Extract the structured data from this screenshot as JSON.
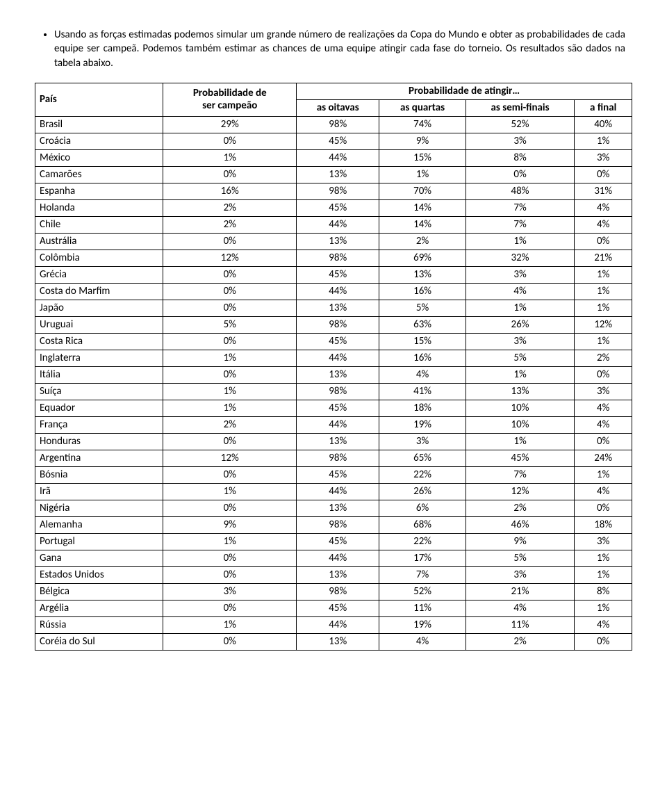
{
  "intro": {
    "bullet": "Usando as forças estimadas podemos simular um grande número de realizações da Copa do Mundo e obter as probabilidades de cada equipe ser campeã. Podemos também estimar as chances de uma equipe atingir cada fase do torneio. Os resultados são dados na tabela abaixo."
  },
  "table": {
    "headers": {
      "pais": "País",
      "prob_campeao_l1": "Probabilidade de",
      "prob_campeao_l2": "ser campeão",
      "prob_atingir": "Probabilidade de atingir…",
      "oitavas": "as oitavas",
      "quartas": "as quartas",
      "semifinais": "as semi-finais",
      "final": "a final"
    },
    "rows": [
      {
        "c": "Brasil",
        "p1": "29%",
        "p2": "98%",
        "p3": "74%",
        "p4": "52%",
        "p5": "40%"
      },
      {
        "c": "Croácia",
        "p1": "0%",
        "p2": "45%",
        "p3": "9%",
        "p4": "3%",
        "p5": "1%"
      },
      {
        "c": "México",
        "p1": "1%",
        "p2": "44%",
        "p3": "15%",
        "p4": "8%",
        "p5": "3%"
      },
      {
        "c": "Camarões",
        "p1": "0%",
        "p2": "13%",
        "p3": "1%",
        "p4": "0%",
        "p5": "0%"
      },
      {
        "c": "Espanha",
        "p1": "16%",
        "p2": "98%",
        "p3": "70%",
        "p4": "48%",
        "p5": "31%"
      },
      {
        "c": "Holanda",
        "p1": "2%",
        "p2": "45%",
        "p3": "14%",
        "p4": "7%",
        "p5": "4%"
      },
      {
        "c": "Chile",
        "p1": "2%",
        "p2": "44%",
        "p3": "14%",
        "p4": "7%",
        "p5": "4%"
      },
      {
        "c": "Austrália",
        "p1": "0%",
        "p2": "13%",
        "p3": "2%",
        "p4": "1%",
        "p5": "0%"
      },
      {
        "c": "Colômbia",
        "p1": "12%",
        "p2": "98%",
        "p3": "69%",
        "p4": "32%",
        "p5": "21%"
      },
      {
        "c": "Grécia",
        "p1": "0%",
        "p2": "45%",
        "p3": "13%",
        "p4": "3%",
        "p5": "1%"
      },
      {
        "c": "Costa do Marfim",
        "p1": "0%",
        "p2": "44%",
        "p3": "16%",
        "p4": "4%",
        "p5": "1%"
      },
      {
        "c": "Japão",
        "p1": "0%",
        "p2": "13%",
        "p3": "5%",
        "p4": "1%",
        "p5": "1%"
      },
      {
        "c": "Uruguai",
        "p1": "5%",
        "p2": "98%",
        "p3": "63%",
        "p4": "26%",
        "p5": "12%"
      },
      {
        "c": "Costa Rica",
        "p1": "0%",
        "p2": "45%",
        "p3": "15%",
        "p4": "3%",
        "p5": "1%"
      },
      {
        "c": "Inglaterra",
        "p1": "1%",
        "p2": "44%",
        "p3": "16%",
        "p4": "5%",
        "p5": "2%"
      },
      {
        "c": "Itália",
        "p1": "0%",
        "p2": "13%",
        "p3": "4%",
        "p4": "1%",
        "p5": "0%"
      },
      {
        "c": "Suíça",
        "p1": "1%",
        "p2": "98%",
        "p3": "41%",
        "p4": "13%",
        "p5": "3%"
      },
      {
        "c": "Equador",
        "p1": "1%",
        "p2": "45%",
        "p3": "18%",
        "p4": "10%",
        "p5": "4%"
      },
      {
        "c": "França",
        "p1": "2%",
        "p2": "44%",
        "p3": "19%",
        "p4": "10%",
        "p5": "4%"
      },
      {
        "c": "Honduras",
        "p1": "0%",
        "p2": "13%",
        "p3": "3%",
        "p4": "1%",
        "p5": "0%"
      },
      {
        "c": "Argentina",
        "p1": "12%",
        "p2": "98%",
        "p3": "65%",
        "p4": "45%",
        "p5": "24%"
      },
      {
        "c": "Bósnia",
        "p1": "0%",
        "p2": "45%",
        "p3": "22%",
        "p4": "7%",
        "p5": "1%"
      },
      {
        "c": "Irã",
        "p1": "1%",
        "p2": "44%",
        "p3": "26%",
        "p4": "12%",
        "p5": "4%"
      },
      {
        "c": "Nigéria",
        "p1": "0%",
        "p2": "13%",
        "p3": "6%",
        "p4": "2%",
        "p5": "0%"
      },
      {
        "c": "Alemanha",
        "p1": "9%",
        "p2": "98%",
        "p3": "68%",
        "p4": "46%",
        "p5": "18%"
      },
      {
        "c": "Portugal",
        "p1": "1%",
        "p2": "45%",
        "p3": "22%",
        "p4": "9%",
        "p5": "3%"
      },
      {
        "c": "Gana",
        "p1": "0%",
        "p2": "44%",
        "p3": "17%",
        "p4": "5%",
        "p5": "1%"
      },
      {
        "c": "Estados Unidos",
        "p1": "0%",
        "p2": "13%",
        "p3": "7%",
        "p4": "3%",
        "p5": "1%"
      },
      {
        "c": "Bélgica",
        "p1": "3%",
        "p2": "98%",
        "p3": "52%",
        "p4": "21%",
        "p5": "8%"
      },
      {
        "c": "Argélia",
        "p1": "0%",
        "p2": "45%",
        "p3": "11%",
        "p4": "4%",
        "p5": "1%"
      },
      {
        "c": "Rússia",
        "p1": "1%",
        "p2": "44%",
        "p3": "19%",
        "p4": "11%",
        "p5": "4%"
      },
      {
        "c": "Coréia do Sul",
        "p1": "0%",
        "p2": "13%",
        "p3": "4%",
        "p4": "2%",
        "p5": "0%"
      }
    ]
  }
}
